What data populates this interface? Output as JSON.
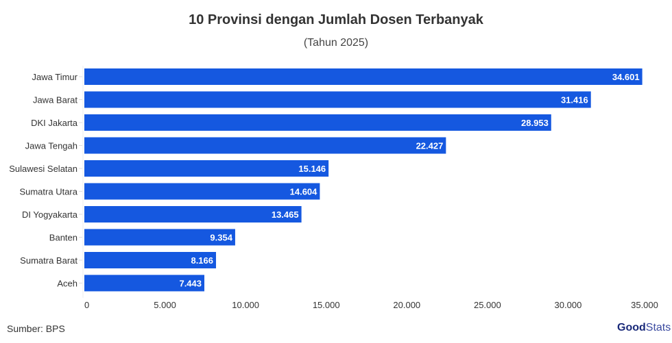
{
  "chart_data": {
    "type": "bar",
    "orientation": "horizontal",
    "title": "10 Provinsi dengan Jumlah Dosen Terbanyak",
    "subtitle": "(Tahun 2025)",
    "categories": [
      "Jawa Timur",
      "Jawa Barat",
      "DKI Jakarta",
      "Jawa Tengah",
      "Sulawesi Selatan",
      "Sumatra Utara",
      "DI Yogyakarta",
      "Banten",
      "Sumatra Barat",
      "Aceh"
    ],
    "values": [
      34601,
      31416,
      28953,
      22427,
      15146,
      14604,
      13465,
      9354,
      8166,
      7443
    ],
    "data_labels": [
      "34.601",
      "31.416",
      "28.953",
      "22.427",
      "15.146",
      "14.604",
      "13.465",
      "9.354",
      "8.166",
      "7.443"
    ],
    "xticks": [
      0,
      5000,
      10000,
      15000,
      20000,
      25000,
      30000,
      35000
    ],
    "xtick_labels": [
      "0",
      "5.000",
      "10.000",
      "15.000",
      "20.000",
      "25.000",
      "30.000",
      "35.000"
    ],
    "xlim": [
      0,
      35000
    ],
    "grid": false,
    "bar_color": "#1558E0"
  },
  "source": "Sumber: BPS",
  "logo": {
    "part1": "Good",
    "part2": "Stats"
  }
}
